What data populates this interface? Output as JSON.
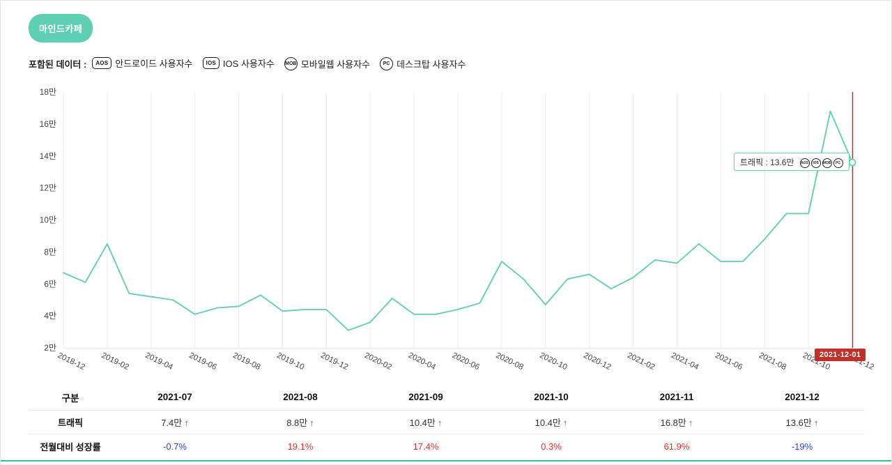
{
  "header": {
    "keyword": "마인드카페"
  },
  "legend": {
    "label": "포함된 데이터 :",
    "items": [
      {
        "badge": "AOS",
        "shape": "pill",
        "label": "안드로이드 사용자수"
      },
      {
        "badge": "IOS",
        "shape": "pill",
        "label": "IOS 사용자수"
      },
      {
        "badge": "MOB",
        "shape": "circle",
        "label": "모바일웹 사용자수"
      },
      {
        "badge": "PC",
        "shape": "circle",
        "label": "데스크탑 사용자수"
      }
    ]
  },
  "chart_data": {
    "type": "line",
    "series_name": "트래픽",
    "unit": "만",
    "x": [
      "2018-12",
      "2019-01",
      "2019-02",
      "2019-03",
      "2019-04",
      "2019-05",
      "2019-06",
      "2019-07",
      "2019-08",
      "2019-09",
      "2019-10",
      "2019-11",
      "2019-12",
      "2020-01",
      "2020-02",
      "2020-03",
      "2020-04",
      "2020-05",
      "2020-06",
      "2020-07",
      "2020-08",
      "2020-09",
      "2020-10",
      "2020-11",
      "2020-12",
      "2021-01",
      "2021-02",
      "2021-03",
      "2021-04",
      "2021-05",
      "2021-06",
      "2021-07",
      "2021-08",
      "2021-09",
      "2021-10",
      "2021-11",
      "2021-12"
    ],
    "values": [
      6.7,
      6.1,
      8.5,
      5.4,
      5.2,
      5.0,
      4.1,
      4.5,
      4.6,
      5.3,
      4.3,
      4.4,
      4.4,
      3.1,
      3.6,
      5.1,
      4.1,
      4.1,
      4.4,
      4.8,
      7.4,
      6.3,
      4.7,
      6.3,
      6.6,
      5.7,
      6.4,
      7.5,
      7.3,
      8.5,
      7.4,
      7.4,
      8.8,
      10.4,
      10.4,
      16.8,
      13.6
    ],
    "ylim": [
      2,
      18
    ],
    "ytick_step": 2,
    "ytick_labels": [
      "2만",
      "4만",
      "6만",
      "8만",
      "10만",
      "12만",
      "14만",
      "16만",
      "18만"
    ],
    "xtick_labels": [
      "2018-12",
      "2019-02",
      "2019-04",
      "2019-06",
      "2019-08",
      "2019-10",
      "2019-12",
      "2020-02",
      "2020-04",
      "2020-06",
      "2020-08",
      "2020-10",
      "2020-12",
      "2021-02",
      "2021-04",
      "2021-06",
      "2021-08",
      "2021-10",
      "2021-12"
    ],
    "grid": "vertical-only",
    "legend_position": "none",
    "marker_date": "2021-12-01",
    "tooltip": {
      "text": "트래픽 : 13.6만",
      "label": "트래픽",
      "value": "13.6만",
      "badges": [
        "AOS",
        "IOS",
        "MOB",
        "PC"
      ]
    }
  },
  "table": {
    "columns": [
      "구분",
      "2021-07",
      "2021-08",
      "2021-09",
      "2021-10",
      "2021-11",
      "2021-12"
    ],
    "rows": [
      {
        "label": "트래픽",
        "values": [
          "7.4만",
          "8.8만",
          "10.4만",
          "10.4만",
          "16.8만",
          "13.6만"
        ],
        "arrow": "↑"
      },
      {
        "label": "전월대비 성장률",
        "values": [
          "-0.7%",
          "19.1%",
          "17.4%",
          "0.3%",
          "61.9%",
          "-19%"
        ]
      }
    ]
  },
  "colors": {
    "accent": "#5fcfb4",
    "line": "#6dcfb4",
    "red": "#bf3128",
    "positive": "#e03131",
    "negative": "#2a46d3",
    "grid": "#ededed",
    "text": "#333333",
    "bottom_line": "#49b79d"
  }
}
